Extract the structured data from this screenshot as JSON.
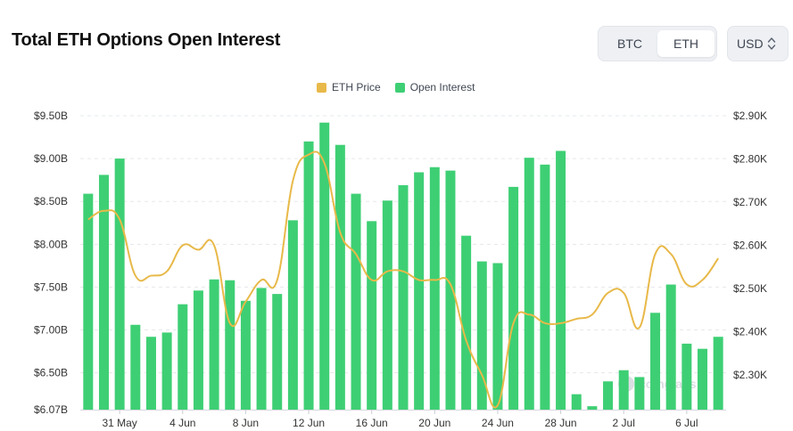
{
  "header": {
    "title": "Total ETH Options Open Interest",
    "toggle": [
      "BTC",
      "ETH"
    ],
    "currency": "USD"
  },
  "colors": {
    "bars": "#3ecf74",
    "line": "#e8b949",
    "grid": "#e6e8ec",
    "axis_text": "#333333"
  },
  "icons": {
    "currency_dropdown": "chevron-up-down-icon"
  },
  "watermark": "coinglass",
  "chart_data": {
    "type": "bar",
    "legend": [
      "ETH Price",
      "Open Interest"
    ],
    "legend_position": "top-center",
    "grid": true,
    "y_left": {
      "ticks": [
        "$9.50B",
        "$9.00B",
        "$8.50B",
        "$8.00B",
        "$7.50B",
        "$7.00B",
        "$6.50B",
        "$6.07B"
      ],
      "tick_values": [
        9.5,
        9.0,
        8.5,
        8.0,
        7.5,
        7.0,
        6.5,
        6.07
      ],
      "range": [
        6.07,
        9.5
      ]
    },
    "y_right": {
      "ticks": [
        "$2.90K",
        "$2.80K",
        "$2.70K",
        "$2.60K",
        "$2.50K",
        "$2.40K",
        "$2.30K"
      ],
      "tick_values": [
        2.9,
        2.8,
        2.7,
        2.6,
        2.5,
        2.4,
        2.3
      ],
      "range": [
        2.22,
        2.9
      ]
    },
    "x_tick_labels": [
      {
        "index": 2,
        "label": "31 May"
      },
      {
        "index": 6,
        "label": "4 Jun"
      },
      {
        "index": 10,
        "label": "8 Jun"
      },
      {
        "index": 14,
        "label": "12 Jun"
      },
      {
        "index": 18,
        "label": "16 Jun"
      },
      {
        "index": 22,
        "label": "20 Jun"
      },
      {
        "index": 26,
        "label": "24 Jun"
      },
      {
        "index": 30,
        "label": "28 Jun"
      },
      {
        "index": 34,
        "label": "2 Jul"
      },
      {
        "index": 38,
        "label": "6 Jul"
      }
    ],
    "series": [
      {
        "name": "Open Interest",
        "type": "bar",
        "unit": "USD billions",
        "values": [
          8.59,
          8.81,
          9.0,
          7.06,
          6.92,
          6.97,
          7.3,
          7.46,
          7.59,
          7.58,
          7.34,
          7.49,
          7.42,
          8.28,
          9.2,
          9.42,
          9.16,
          8.59,
          8.27,
          8.51,
          8.69,
          8.84,
          8.9,
          8.86,
          8.1,
          7.8,
          7.78,
          8.67,
          9.01,
          8.93,
          9.09,
          6.25,
          6.11,
          6.4,
          6.53,
          6.45,
          7.2,
          7.53,
          6.84,
          6.78,
          6.92
        ]
      },
      {
        "name": "ETH Price",
        "type": "line",
        "unit": "USD thousands",
        "values": [
          2.66,
          2.68,
          2.66,
          2.53,
          2.53,
          2.54,
          2.6,
          2.59,
          2.6,
          2.42,
          2.47,
          2.52,
          2.52,
          2.75,
          2.81,
          2.79,
          2.63,
          2.58,
          2.52,
          2.54,
          2.54,
          2.52,
          2.52,
          2.51,
          2.38,
          2.3,
          2.23,
          2.42,
          2.44,
          2.42,
          2.42,
          2.43,
          2.44,
          2.49,
          2.49,
          2.41,
          2.58,
          2.58,
          2.51,
          2.52,
          2.57
        ]
      }
    ]
  }
}
